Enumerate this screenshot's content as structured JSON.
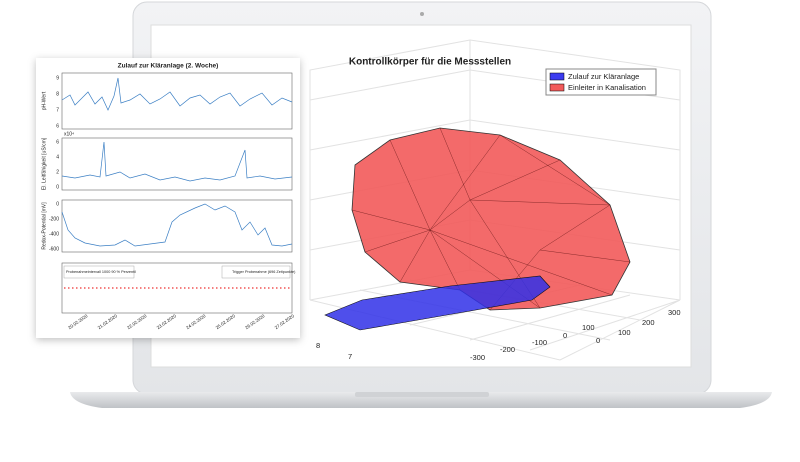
{
  "left_panel": {
    "title": "Zulauf zur Kläranlage (2. Woche)",
    "subplots": [
      {
        "ylabel": "pH-Wert",
        "yticks": [
          "9",
          "8",
          "7",
          "6"
        ]
      },
      {
        "ylabel": "El. Leitfähigkeit [uS/cm]",
        "exponent": "x10⁴",
        "yticks": [
          "6",
          "4",
          "2",
          "0"
        ]
      },
      {
        "ylabel": "Redox-Potential [mV]",
        "yticks": [
          "0",
          "-200",
          "-400",
          "-600"
        ]
      },
      {
        "legend": [
          "Probenahmeintervall 1000 90 % Perzentil",
          "Trigger Probenahme (696 Zeitpunkte)"
        ]
      }
    ],
    "xticks": [
      "20.02.2020",
      "21.02.2020",
      "22.02.2020",
      "23.02.2020",
      "24.02.2020",
      "25.02.2020",
      "26.02.2020",
      "27.02.2020"
    ]
  },
  "plot3d": {
    "title": "Kontrollkörper für die Messstellen",
    "legend": [
      "Zulauf zur Kläranlage",
      "Einleiter in Kanalisation"
    ],
    "right_ticks": [
      "300",
      "200",
      "100",
      "0"
    ],
    "bottom_ticks": [
      "-300",
      "-200",
      "-100",
      "0",
      "100"
    ],
    "left_ticks": [
      "8",
      "7"
    ]
  }
}
